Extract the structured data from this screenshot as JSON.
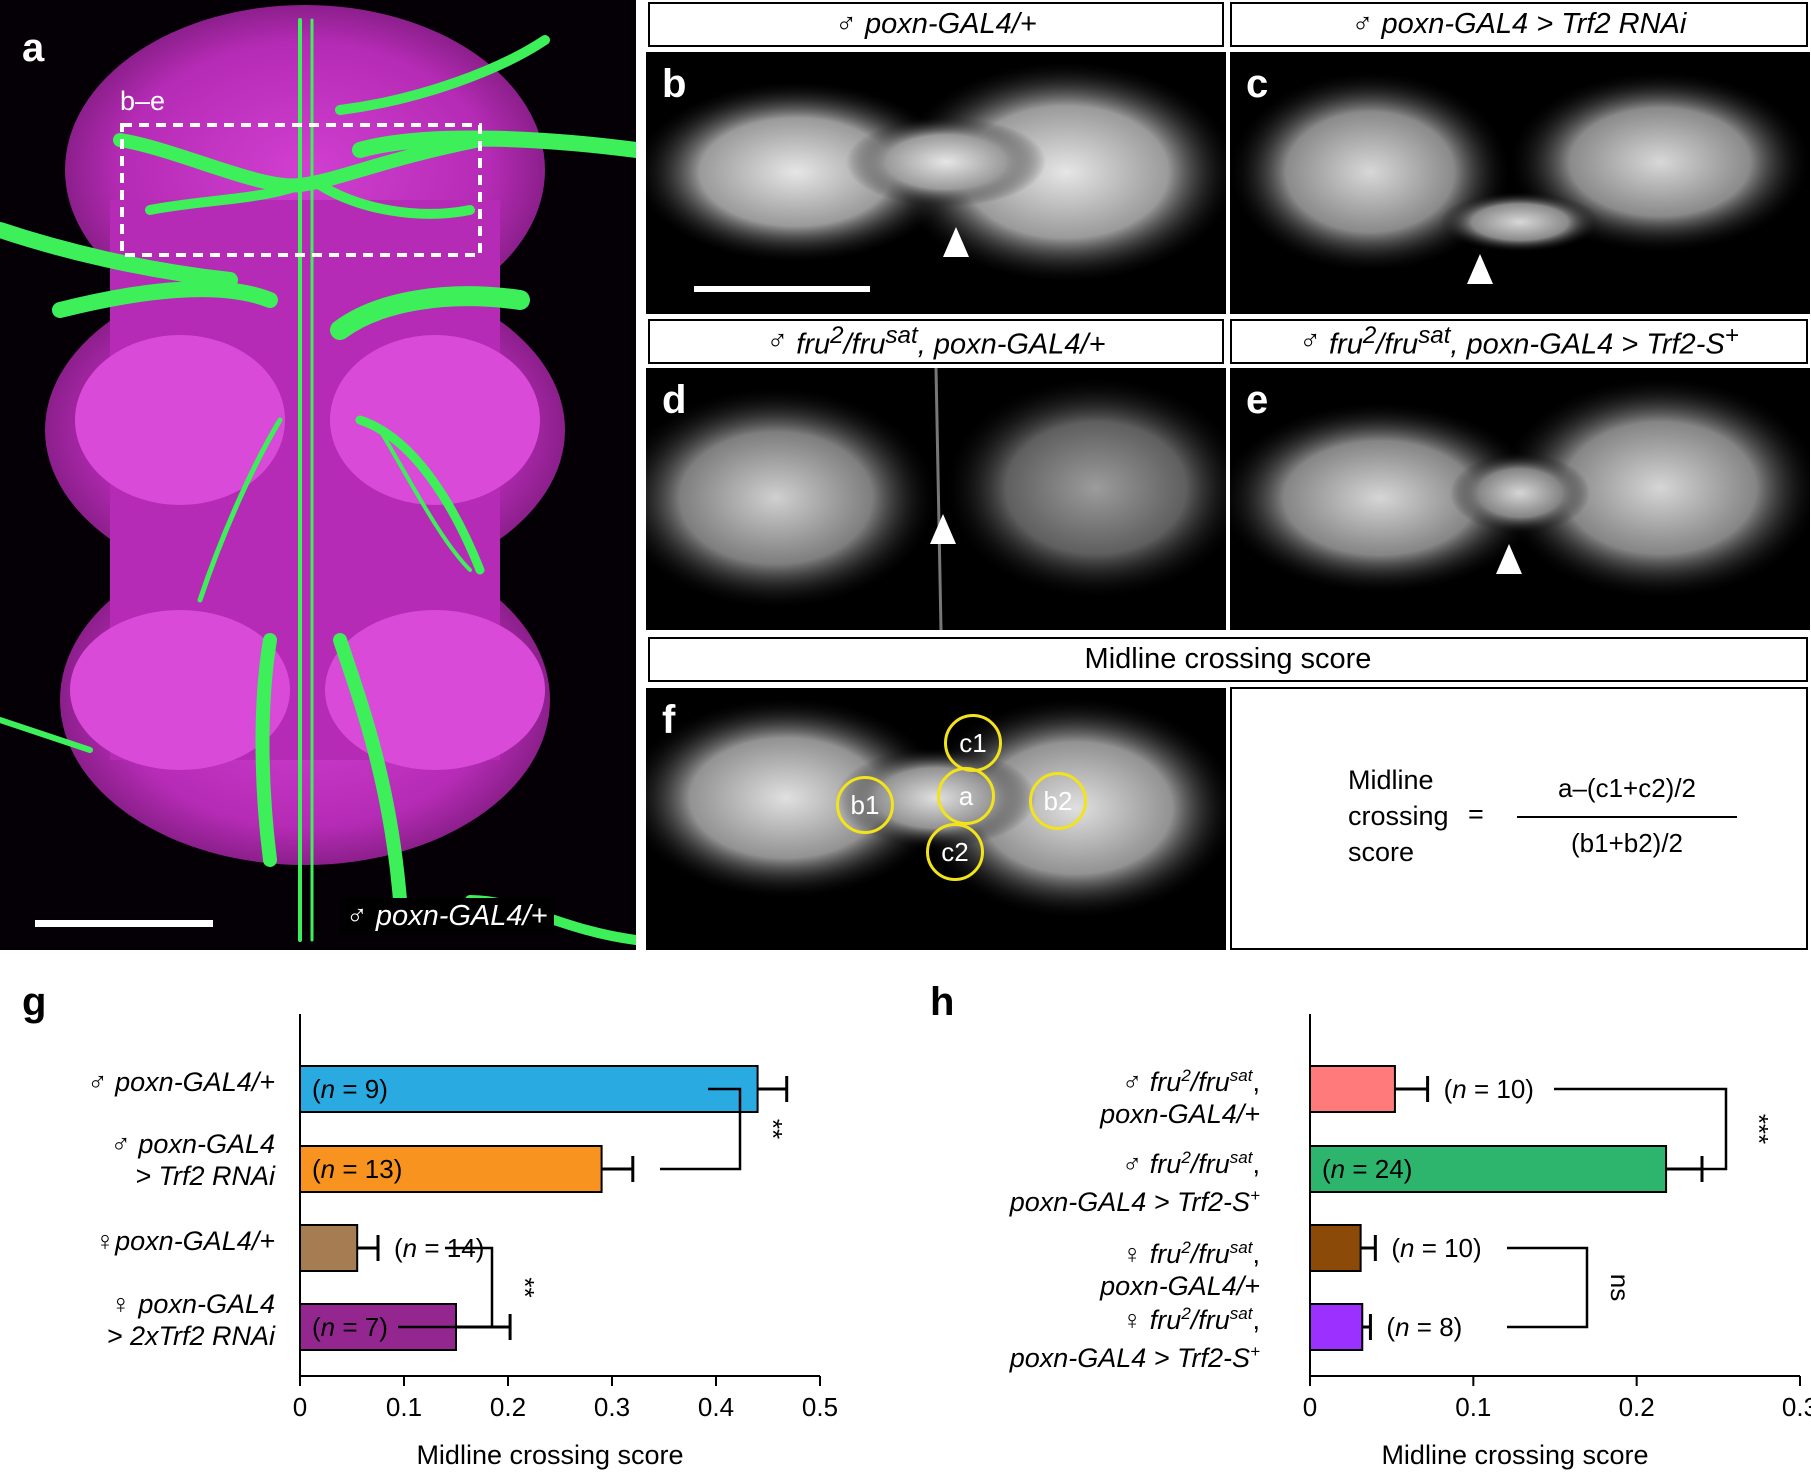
{
  "panels": {
    "a": {
      "letter": "a",
      "roi_label": "b–e",
      "genotype_sex": "♂",
      "genotype": "poxn-GAL4/+"
    },
    "b": {
      "letter": "b",
      "caption_sex": "♂",
      "caption": "poxn-GAL4/+"
    },
    "c": {
      "letter": "c",
      "caption_sex": "♂",
      "caption": "poxn-GAL4 > Trf2 RNAi"
    },
    "d": {
      "letter": "d",
      "caption_sex": "♂",
      "caption_pre": "fru",
      "caption_sup1": "2",
      "caption_mid": "/fru",
      "caption_sup2": "sat",
      "caption_post": ", poxn-GAL4/+"
    },
    "e": {
      "letter": "e",
      "caption_sex": "♂",
      "caption_pre": "fru",
      "caption_sup1": "2",
      "caption_mid": "/fru",
      "caption_sup2": "sat",
      "caption_post": ", poxn-GAL4 > Trf2-S",
      "caption_sup3": "+"
    },
    "f": {
      "letter": "f",
      "title": "Midline crossing score",
      "circles": [
        "c1",
        "a",
        "b1",
        "b2",
        "c2"
      ],
      "formula": {
        "label_line1": "Midline",
        "label_line2": "crossing",
        "label_line3": "score",
        "equals": "=",
        "numerator": "a–(c1+c2)/2",
        "denominator": "(b1+b2)/2"
      }
    }
  },
  "colors": {
    "magenta": "#c72fc7",
    "green": "#3df05a",
    "ring": "#f2e31a"
  },
  "chart_data": [
    {
      "panel": "g",
      "type": "bar",
      "orientation": "horizontal",
      "categories": [
        "♂ poxn-GAL4/+",
        "♂ poxn-GAL4 > Trf2 RNAi",
        "♀ poxn-GAL4/+",
        "♀ poxn-GAL4 > 2xTrf2 RNAi"
      ],
      "values": [
        0.44,
        0.29,
        0.055,
        0.15
      ],
      "errors": [
        0.028,
        0.03,
        0.02,
        0.052
      ],
      "n_labels": [
        "9",
        "13",
        "14",
        "7"
      ],
      "bar_colors": [
        "#29abe2",
        "#f7931e",
        "#a67c52",
        "#93278f"
      ],
      "xlabel": "Midline crossing score",
      "xlim": [
        0,
        0.5
      ],
      "xticks": [
        "0",
        "0.1",
        "0.2",
        "0.3",
        "0.4",
        "0.5"
      ],
      "significance": [
        {
          "pair": [
            0,
            1
          ],
          "label": "**"
        },
        {
          "pair": [
            2,
            3
          ],
          "label": "**"
        }
      ]
    },
    {
      "panel": "h",
      "type": "bar",
      "orientation": "horizontal",
      "categories": [
        "♂ fru2/frusat, poxn-GAL4/+",
        "♂ fru2/frusat, poxn-GAL4 > Trf2-S+",
        "♀ fru2/frusat, poxn-GAL4/+",
        "♀ fru2/frusat, poxn-GAL4 > Trf2-S+"
      ],
      "values": [
        0.052,
        0.218,
        0.031,
        0.032
      ],
      "errors": [
        0.02,
        0.022,
        0.009,
        0.005
      ],
      "n_labels": [
        "10",
        "24",
        "10",
        "8"
      ],
      "bar_colors": [
        "#ff7b7b",
        "#2db56e",
        "#8b4a08",
        "#9b30ff"
      ],
      "xlabel": "Midline crossing score",
      "xlim": [
        0,
        0.3
      ],
      "xticks": [
        "0",
        "0.1",
        "0.2",
        "0.3"
      ],
      "significance": [
        {
          "pair": [
            0,
            1
          ],
          "label": "***"
        },
        {
          "pair": [
            2,
            3
          ],
          "label": "ns"
        }
      ]
    }
  ],
  "labels_g": {
    "letter": "g",
    "rows": [
      {
        "sex": "♂",
        "l1": "poxn-GAL4/+",
        "l2": ""
      },
      {
        "sex": "♂",
        "l1": "poxn-GAL4",
        "l2": "> Trf2 RNAi"
      },
      {
        "sex": "♀",
        "l1": "poxn-GAL4/+",
        "l2": ""
      },
      {
        "sex": "♀",
        "l1": "poxn-GAL4",
        "l2": "> 2xTrf2 RNAi"
      }
    ]
  },
  "labels_h": {
    "letter": "h",
    "rows": [
      {
        "sex": "♂",
        "pre": "fru",
        "s1": "2",
        "mid": "/fru",
        "s2": "sat",
        "post": ",",
        "l2": "poxn-GAL4/+",
        "l2sup": ""
      },
      {
        "sex": "♂",
        "pre": "fru",
        "s1": "2",
        "mid": "/fru",
        "s2": "sat",
        "post": ",",
        "l2": "poxn-GAL4 > Trf2-S",
        "l2sup": "+"
      },
      {
        "sex": "♀",
        "pre": "fru",
        "s1": "2",
        "mid": "/fru",
        "s2": "sat",
        "post": ",",
        "l2": "poxn-GAL4/+",
        "l2sup": ""
      },
      {
        "sex": "♀",
        "pre": "fru",
        "s1": "2",
        "mid": "/fru",
        "s2": "sat",
        "post": ",",
        "l2": "poxn-GAL4 > Trf2-S",
        "l2sup": "+"
      }
    ]
  }
}
